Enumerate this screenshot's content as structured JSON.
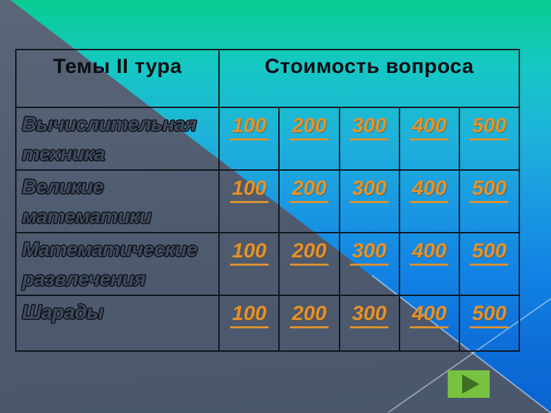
{
  "table": {
    "header": {
      "topics": "Темы II тура",
      "cost": "Стоимость вопроса"
    },
    "rows": [
      {
        "topic": "Вычислительная техника",
        "values": [
          "100",
          "200",
          "300",
          "400",
          "500"
        ]
      },
      {
        "topic": "Великие математики",
        "values": [
          "100",
          "200",
          "300",
          "400",
          "500"
        ]
      },
      {
        "topic": "Математические развлечения",
        "values": [
          "100",
          "200",
          "300",
          "400",
          "500"
        ]
      },
      {
        "topic": "Шарады",
        "values": [
          "100",
          "200",
          "300",
          "400",
          "500"
        ]
      }
    ]
  },
  "next_button": {
    "icon": "play-arrow"
  },
  "colors": {
    "accent_orange": "#E2922D",
    "gradient_top_green": "#09CC90",
    "gradient_mid_cyan": "#1EB2DA",
    "gradient_bottom_blue": "#0A62D0",
    "gray_triangle": "#4E5A6E",
    "button_green": "#79C140",
    "play_triangle_green": "#3E6E20",
    "table_border": "#10151D"
  }
}
